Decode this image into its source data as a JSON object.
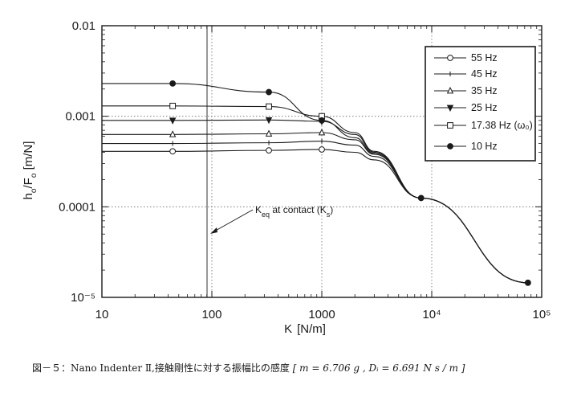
{
  "chart_data": {
    "type": "line",
    "xscale": "log",
    "yscale": "log",
    "xlim": [
      10,
      100000
    ],
    "ylim": [
      1e-05,
      0.01
    ],
    "grid": true,
    "legend_position": "top-right",
    "x_ticks": [
      "10",
      "100",
      "1000",
      "10⁴",
      "10⁵"
    ],
    "y_ticks": [
      "0.01",
      "0.001",
      "0.0001",
      "10⁻⁵"
    ],
    "xlabel": "K [N/m]",
    "ylabel": "h₀/F₀ [m/N]",
    "annotation": "K_eq at contact (K_s)",
    "annotation_x": 100,
    "series": [
      {
        "name": "55 Hz",
        "marker": "circle-open",
        "x": [
          10,
          44,
          330,
          1000,
          2000,
          3000,
          8000,
          75000
        ],
        "y": [
          0.00041,
          0.00041,
          0.00042,
          0.00043,
          0.0004,
          0.00033,
          0.000125,
          1.45e-05
        ]
      },
      {
        "name": "45 Hz",
        "marker": "none",
        "x": [
          10,
          44,
          330,
          1000,
          2000,
          3000,
          8000,
          75000
        ],
        "y": [
          0.0005,
          0.0005,
          0.00051,
          0.00053,
          0.00048,
          0.00036,
          0.000125,
          1.45e-05
        ]
      },
      {
        "name": "35 Hz",
        "marker": "triangle-open",
        "x": [
          10,
          44,
          330,
          1000,
          2000,
          3000,
          8000,
          75000
        ],
        "y": [
          0.00063,
          0.00063,
          0.00064,
          0.00066,
          0.00055,
          0.00038,
          0.000125,
          1.45e-05
        ]
      },
      {
        "name": "25 Hz",
        "marker": "triangle-down",
        "x": [
          10,
          44,
          330,
          1000,
          2000,
          3000,
          8000,
          75000
        ],
        "y": [
          0.0009,
          0.0009,
          0.00091,
          0.00088,
          0.00063,
          0.0004,
          0.000125,
          1.45e-05
        ]
      },
      {
        "name": "17.38 Hz (ω₀)",
        "marker": "square-open",
        "x": [
          10,
          44,
          330,
          1000,
          2000,
          3000,
          8000,
          75000
        ],
        "y": [
          0.0013,
          0.0013,
          0.00128,
          0.001,
          0.00066,
          0.00041,
          0.000125,
          1.45e-05
        ]
      },
      {
        "name": "10 Hz",
        "marker": "circle-filled",
        "x": [
          10,
          44,
          330,
          1000,
          2000,
          3000,
          8000,
          75000
        ],
        "y": [
          0.0023,
          0.0023,
          0.00185,
          0.0009,
          0.00058,
          0.00039,
          0.000125,
          1.45e-05
        ]
      }
    ]
  },
  "caption": {
    "prefix": "図－５：Nano Indenter Ⅱ,接触剛性に対する振幅比の感度",
    "params": "[ m = 6.706 g , Dᵢ = 6.691 N s / m ]"
  },
  "colors": {
    "ink": "#1a1a1a",
    "background": "#ffffff",
    "grid": "#6b6b6b"
  }
}
